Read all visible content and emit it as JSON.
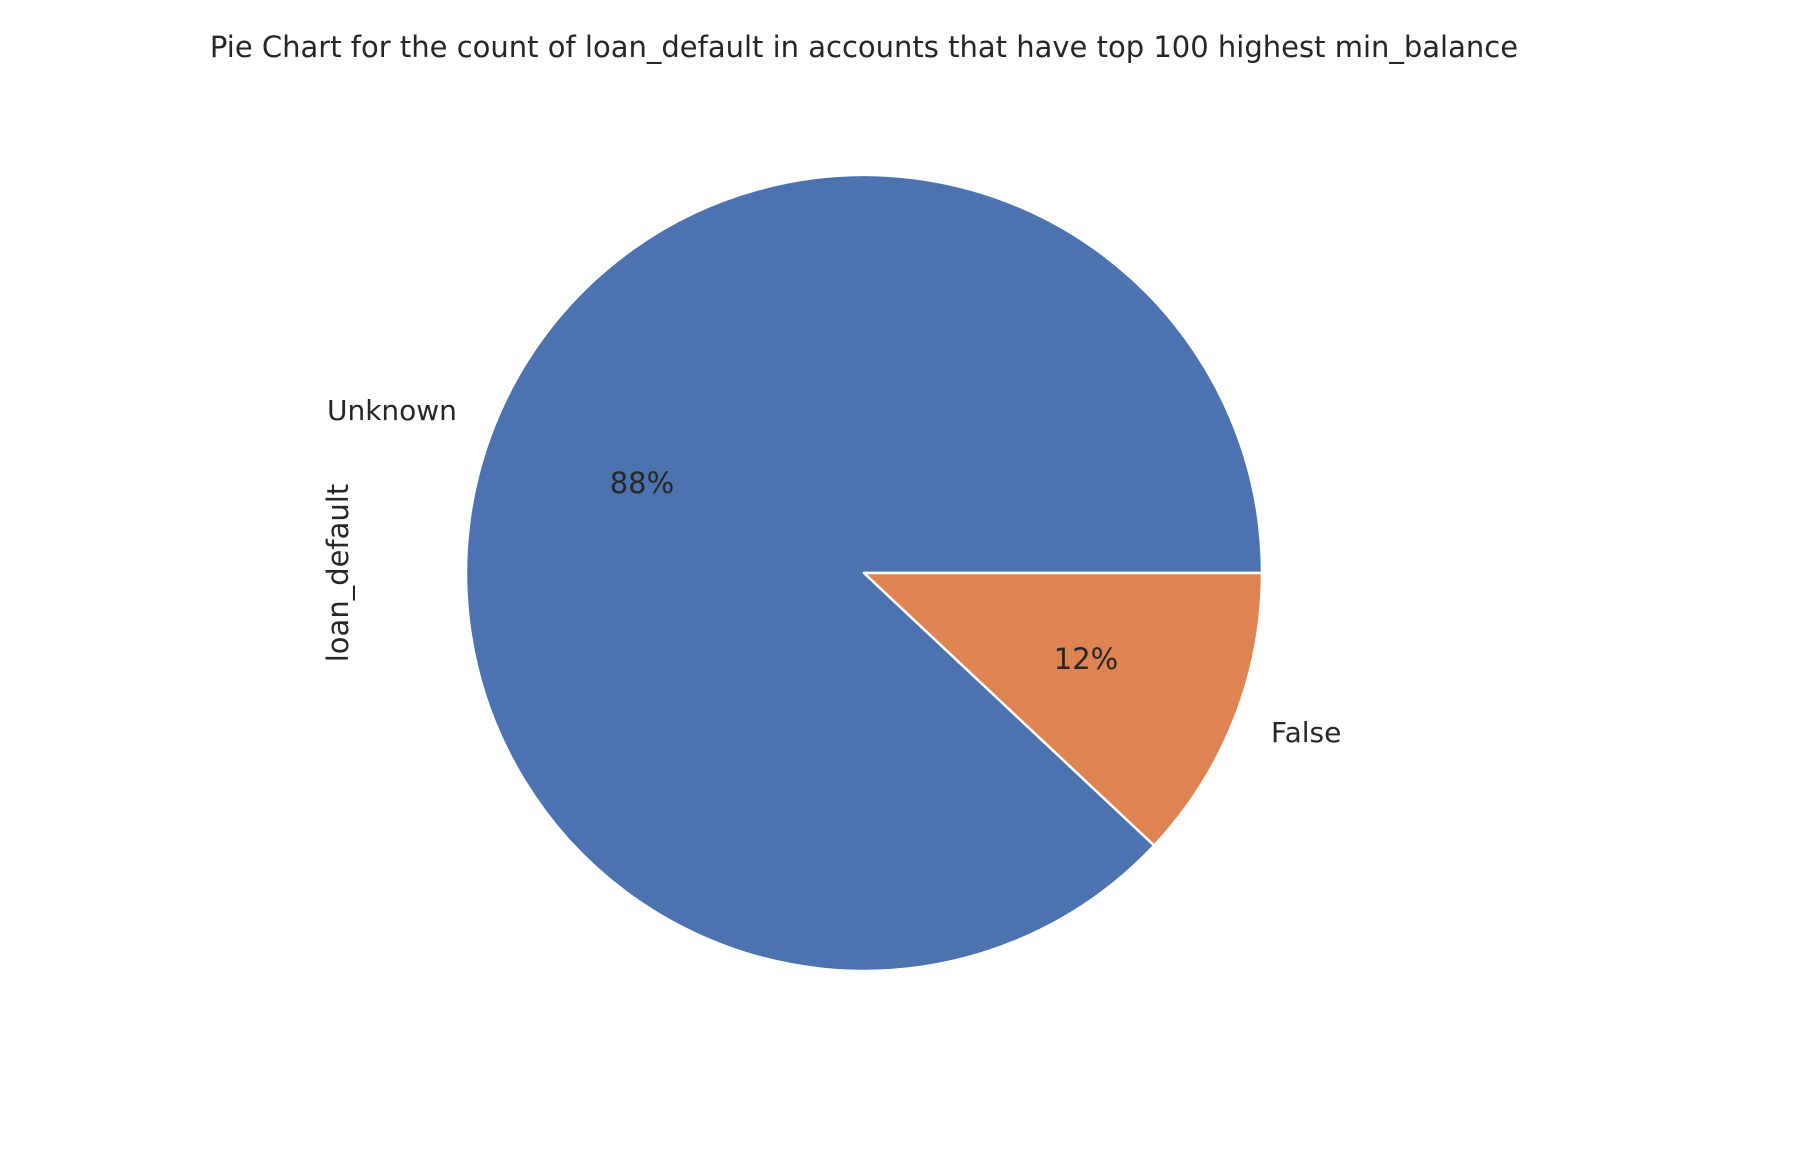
{
  "chart_data": {
    "type": "pie",
    "title": "Pie Chart for the count of loan_default in accounts that have top 100 highest min_balance",
    "ylabel": "loan_default",
    "categories": [
      "Unknown",
      "False"
    ],
    "values": [
      88,
      12
    ],
    "percent_labels": [
      "88%",
      "12%"
    ],
    "colors": [
      "#4c72b0",
      "#dd8452"
    ],
    "start_angle_deg": 0,
    "direction": "counterclockwise",
    "legend": "none"
  }
}
